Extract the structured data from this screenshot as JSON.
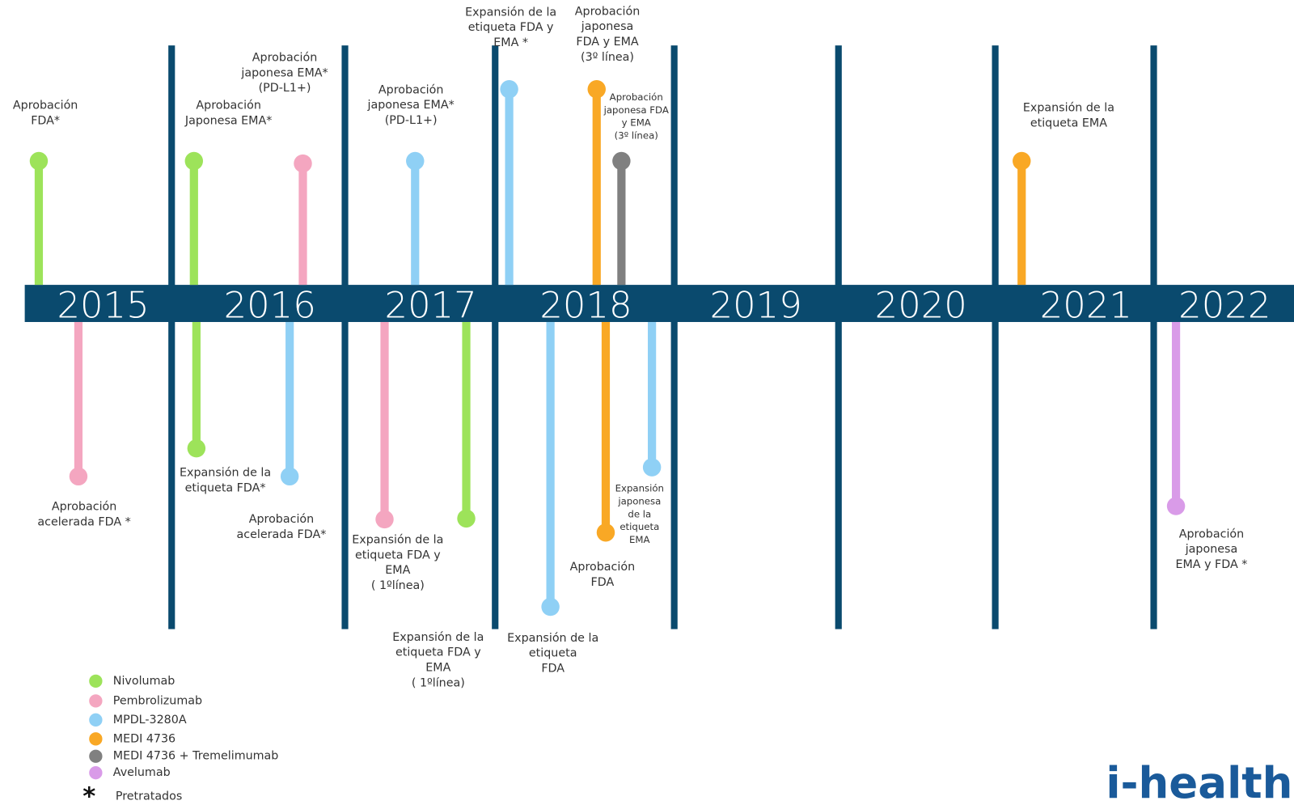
{
  "years": [
    "2015",
    "2016",
    "2017",
    "2018",
    "2019",
    "2020",
    "2021",
    "2022"
  ],
  "events": [
    {
      "label": [
        "Aprobación",
        "FDA*"
      ],
      "color": "#9de35a"
    },
    {
      "label": [
        "Aprobación",
        "acelerada FDA *"
      ],
      "color": "#f4a6c0"
    },
    {
      "label": [
        "Aprobación",
        "Japonesa EMA*"
      ],
      "color": "#9de35a"
    },
    {
      "label": [
        "Expansión de la",
        "etiqueta FDA*"
      ],
      "color": "#9de35a"
    },
    {
      "label": [
        "Aprobación",
        "japonesa EMA*",
        "(PD-L1+)"
      ],
      "color": "#f4a6c0"
    },
    {
      "label": [
        "Aprobación",
        "acelerada FDA*"
      ],
      "color": "#8fd0f5"
    },
    {
      "label": [
        "Aprobación",
        "japonesa EMA*",
        "(PD-L1+)"
      ],
      "color": "#8fd0f5"
    },
    {
      "label": [
        "Expansión de la",
        "etiqueta FDA y",
        "EMA",
        "( 1ºlínea)"
      ],
      "color": "#f4a6c0"
    },
    {
      "label": [
        "Expansión de la",
        "etiqueta FDA y",
        "EMA",
        "( 1ºlínea)"
      ],
      "color": "#9de35a"
    },
    {
      "label": [
        "Expansión de la",
        "etiqueta FDA y",
        "EMA *"
      ],
      "color": "#8fd0f5"
    },
    {
      "label": [
        "Aprobación",
        "japonesa",
        "FDA y EMA",
        "(3º línea)"
      ],
      "color": "#f9a825"
    },
    {
      "label": [
        "Aprobación",
        "japonesa FDA",
        "y EMA",
        "(3º línea)"
      ],
      "color": "#808080"
    },
    {
      "label": [
        "Expansión de la",
        "etiqueta",
        "FDA"
      ],
      "color": "#8fd0f5"
    },
    {
      "label": [
        "Aprobación",
        "FDA"
      ],
      "color": "#f9a825"
    },
    {
      "label": [
        "Expansión",
        "japonesa",
        "de la",
        "etiqueta",
        "EMA"
      ],
      "color": "#8fd0f5"
    },
    {
      "label": [
        "Expansión de la",
        "etiqueta EMA"
      ],
      "color": "#f9a825"
    },
    {
      "label": [
        "Aprobación",
        "japonesa",
        "EMA y FDA *"
      ],
      "color": "#d99be8"
    }
  ],
  "legend": [
    {
      "name": "Nivolumab",
      "color": "#9de35a"
    },
    {
      "name": "Pembrolizumab",
      "color": "#f4a6c0"
    },
    {
      "name": "MPDL-3280A",
      "color": "#8fd0f5"
    },
    {
      "name": "MEDI 4736",
      "color": "#f9a825"
    },
    {
      "name": "MEDI 4736 + Tremelimumab",
      "color": "#808080"
    },
    {
      "name": "Avelumab",
      "color": "#d99be8"
    }
  ],
  "footnote": {
    "symbol": "*",
    "text": "Pretratados"
  },
  "logo": "i-health"
}
